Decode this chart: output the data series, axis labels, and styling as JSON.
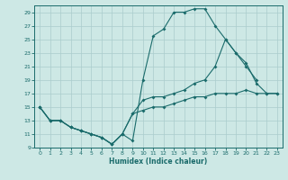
{
  "title": "",
  "xlabel": "Humidex (Indice chaleur)",
  "bg_color": "#cde8e5",
  "line_color": "#1a6b6b",
  "grid_color": "#aacccc",
  "xlim": [
    -0.5,
    23.5
  ],
  "ylim": [
    9,
    30
  ],
  "yticks": [
    9,
    11,
    13,
    15,
    17,
    19,
    21,
    23,
    25,
    27,
    29
  ],
  "xticks": [
    0,
    1,
    2,
    3,
    4,
    5,
    6,
    7,
    8,
    9,
    10,
    11,
    12,
    13,
    14,
    15,
    16,
    17,
    18,
    19,
    20,
    21,
    22,
    23
  ],
  "line1_x": [
    0,
    1,
    2,
    3,
    4,
    5,
    6,
    7,
    8,
    9,
    10,
    11,
    12,
    13,
    14,
    15,
    16,
    17,
    18,
    19,
    20,
    21
  ],
  "line1_y": [
    15,
    13,
    13,
    12,
    11.5,
    11,
    10.5,
    9.5,
    11,
    10,
    19,
    25.5,
    26.5,
    29,
    29,
    29.5,
    29.5,
    27,
    25,
    23,
    21,
    19
  ],
  "line2_x": [
    0,
    1,
    2,
    3,
    4,
    5,
    6,
    7,
    8,
    9,
    10,
    11,
    12,
    13,
    14,
    15,
    16,
    17,
    18,
    19,
    20,
    21,
    22,
    23
  ],
  "line2_y": [
    15,
    13,
    13,
    12,
    11.5,
    11,
    10.5,
    9.5,
    11,
    14,
    16,
    16.5,
    16.5,
    17,
    17.5,
    18.5,
    19,
    21,
    25,
    23,
    21.5,
    18.5,
    17,
    17
  ],
  "line3_x": [
    0,
    1,
    2,
    3,
    4,
    5,
    6,
    7,
    8,
    9,
    10,
    11,
    12,
    13,
    14,
    15,
    16,
    17,
    18,
    19,
    20,
    21,
    22,
    23
  ],
  "line3_y": [
    15,
    13,
    13,
    12,
    11.5,
    11,
    10.5,
    9.5,
    11,
    14,
    14.5,
    15,
    15,
    15.5,
    16,
    16.5,
    16.5,
    17,
    17,
    17,
    17.5,
    17,
    17,
    17
  ]
}
